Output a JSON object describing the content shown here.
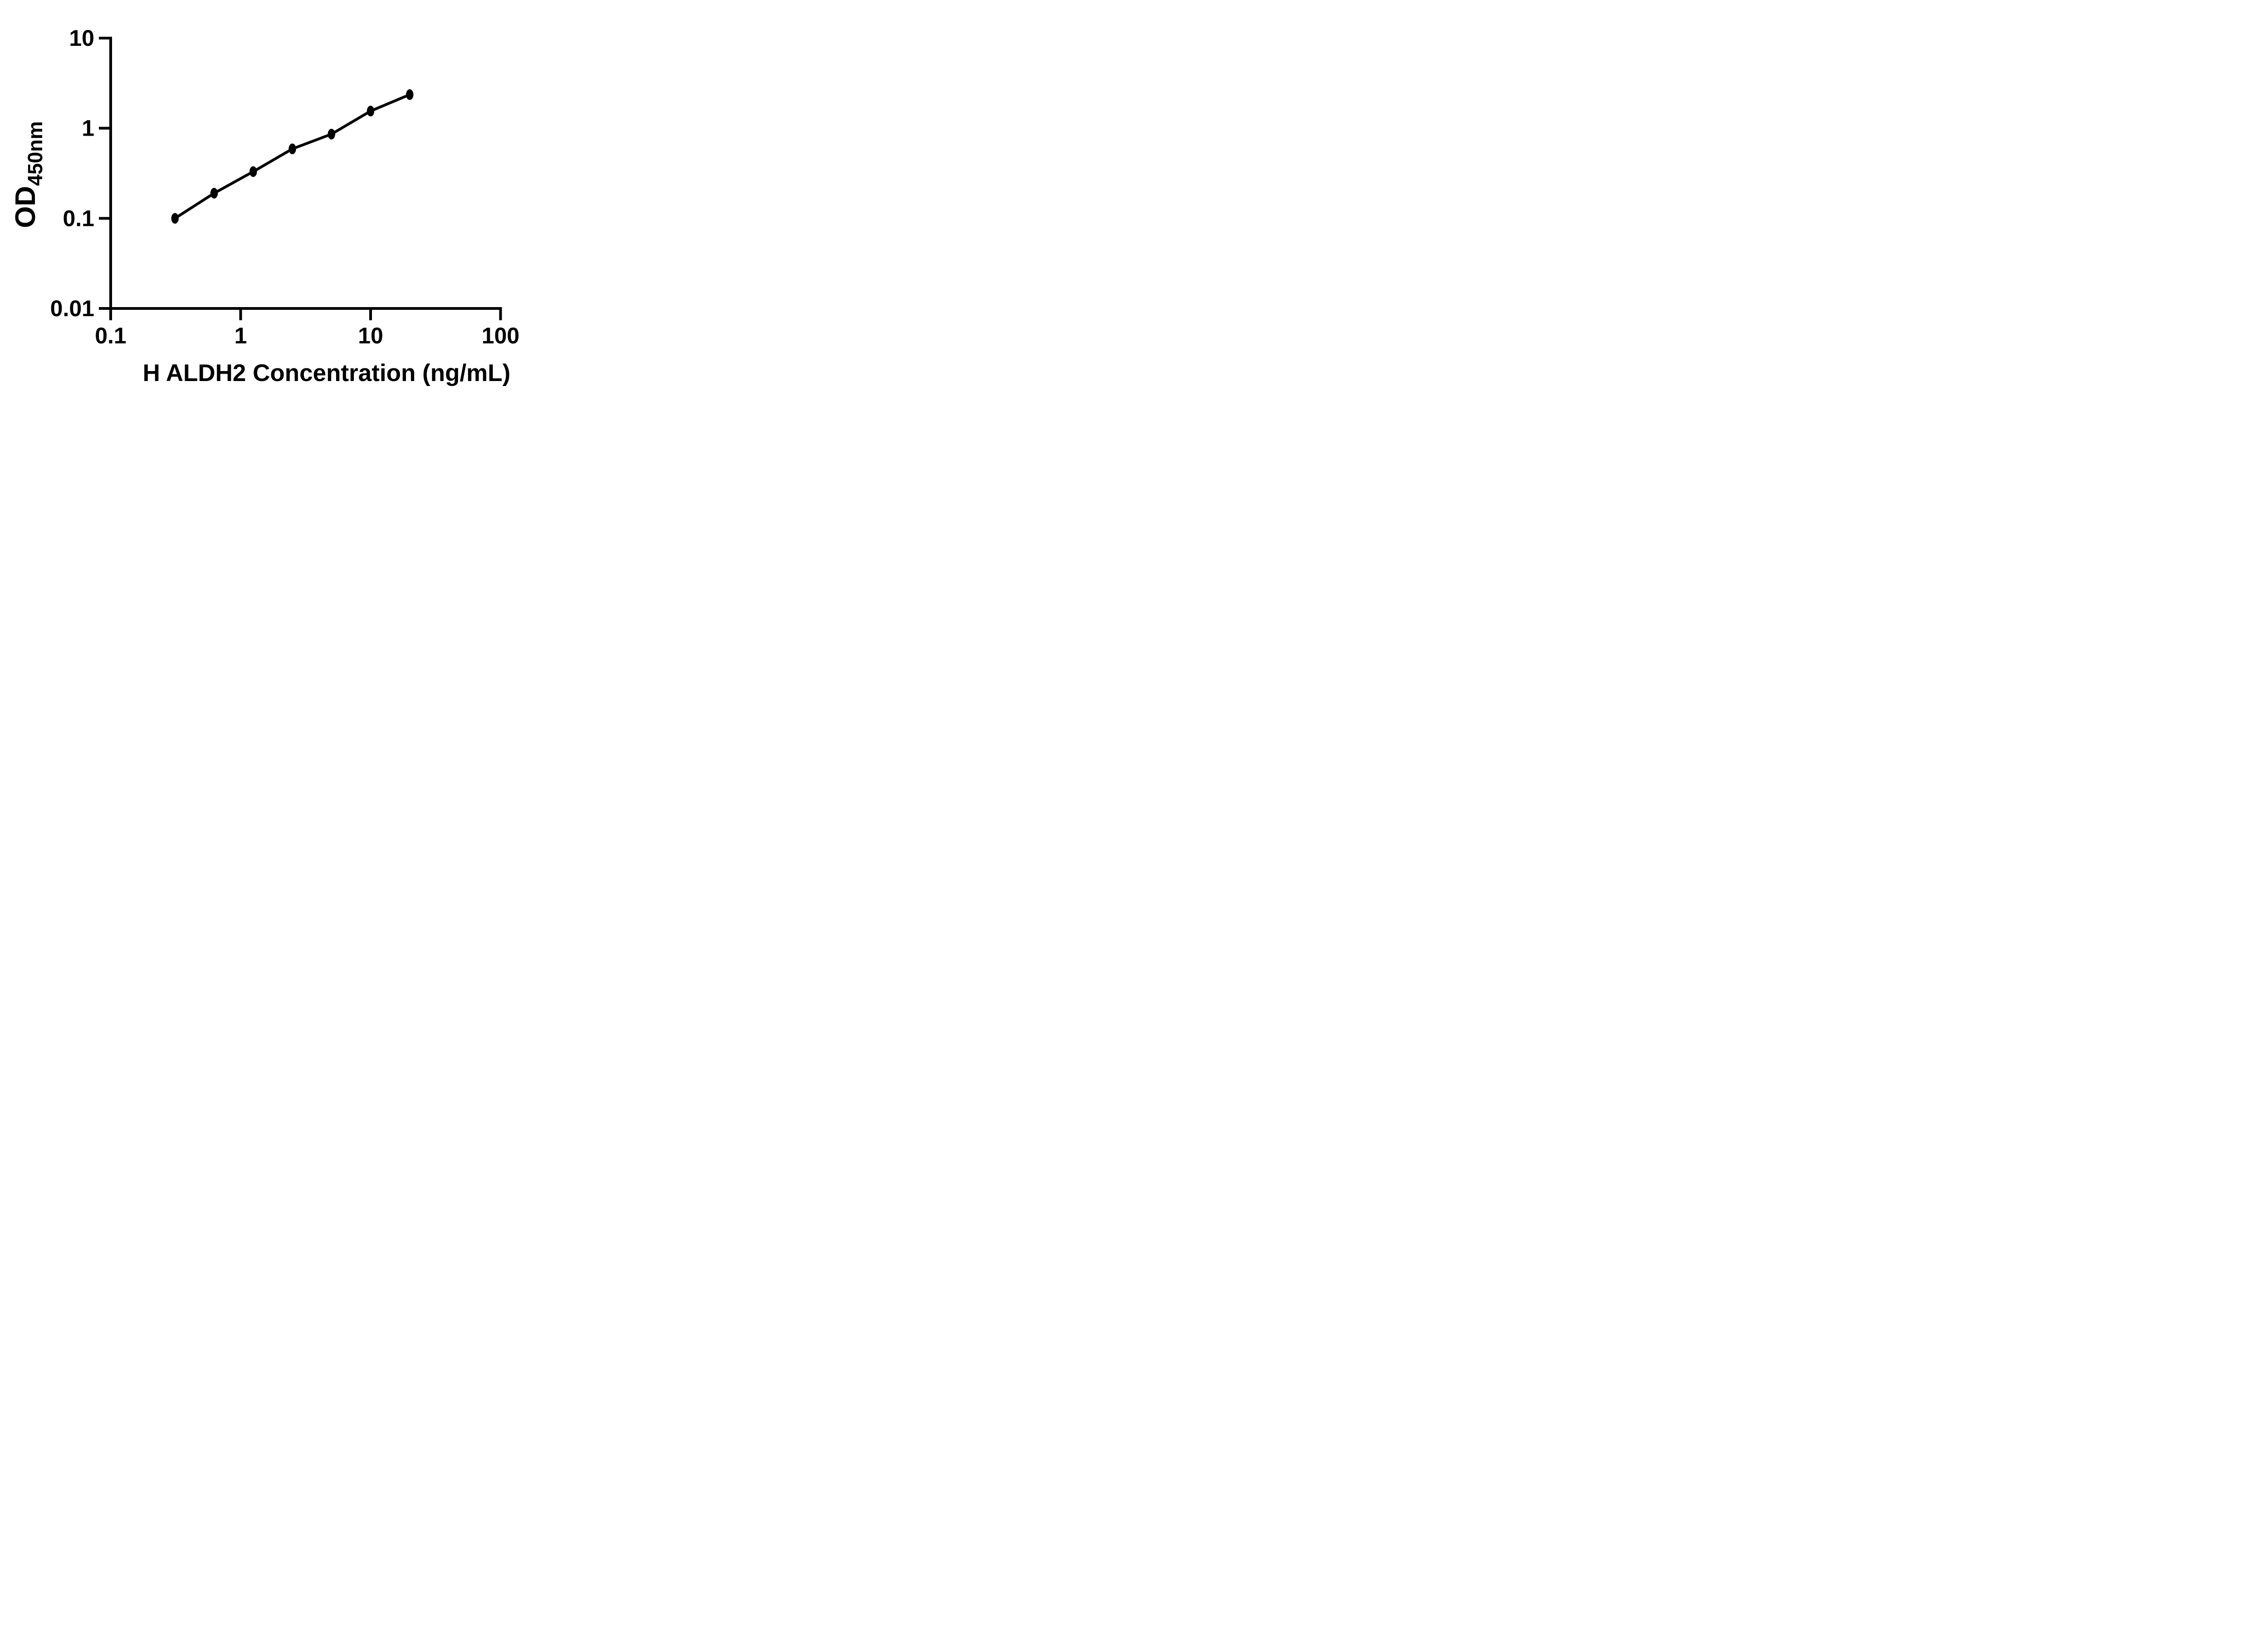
{
  "figure": {
    "background_color": "#ffffff",
    "ink_color": "#000000"
  },
  "chart_data": {
    "type": "scatter",
    "subtype": "log-log standard curve with connecting line",
    "title": "",
    "xlabel": "H ALDH2 Concentration (ng/mL)",
    "ylabel_main": "OD",
    "ylabel_sub": "450nm",
    "x_scale": "log10",
    "y_scale": "log10",
    "xlim": [
      0.1,
      100
    ],
    "ylim": [
      0.01,
      10
    ],
    "x_ticks": [
      0.1,
      1,
      10,
      100
    ],
    "x_tick_labels": [
      "0.1",
      "1",
      "10",
      "100"
    ],
    "y_ticks": [
      0.01,
      0.1,
      1,
      10
    ],
    "y_tick_labels": [
      "0.01",
      "0.1",
      "1",
      "10"
    ],
    "grid": false,
    "legend": false,
    "marker": "filled-circle",
    "marker_color": "#000000",
    "line_color": "#000000",
    "series": [
      {
        "x": [
          0.3125,
          0.625,
          1.25,
          2.5,
          5,
          10,
          20
        ],
        "y": [
          0.1,
          0.19,
          0.33,
          0.59,
          0.86,
          1.55,
          2.36
        ]
      }
    ]
  }
}
